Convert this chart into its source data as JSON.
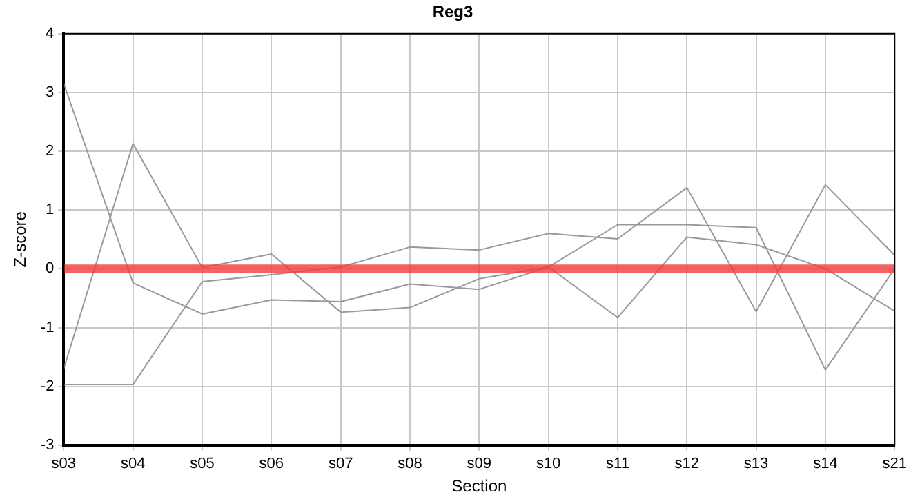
{
  "chart_data": {
    "type": "line",
    "title": "Reg3",
    "xlabel": "Section",
    "ylabel": "Z-score",
    "categories": [
      "s03",
      "s04",
      "s05",
      "s06",
      "s07",
      "s08",
      "s09",
      "s10",
      "s11",
      "s12",
      "s13",
      "s14",
      "s21"
    ],
    "series": [
      {
        "color": "#999999",
        "values": [
          3.15,
          -0.24,
          -0.77,
          -0.53,
          -0.56,
          -0.26,
          -0.35,
          0.03,
          -0.83,
          0.54,
          0.41,
          0,
          -0.72
        ]
      },
      {
        "color": "#999999",
        "values": [
          -1.7,
          2.13,
          0.02,
          0.25,
          -0.74,
          -0.66,
          -0.17,
          0.03,
          0.75,
          0.75,
          0.7,
          -1.72,
          0
        ]
      },
      {
        "color": "#999999",
        "values": [
          -1.97,
          -1.97,
          -0.22,
          -0.1,
          0.03,
          0.37,
          0.32,
          0.6,
          0.51,
          1.38,
          -0.73,
          1.43,
          0.23
        ]
      }
    ],
    "ylim": [
      -3,
      4
    ],
    "yticks": [
      -3,
      -2,
      -1,
      0,
      1,
      2,
      3,
      4
    ],
    "ref_lines": [
      {
        "axis": "y",
        "value": 0,
        "color": "#f03c3c"
      }
    ],
    "grid": true,
    "legend": false,
    "marker": "none",
    "line_style": "solid"
  }
}
